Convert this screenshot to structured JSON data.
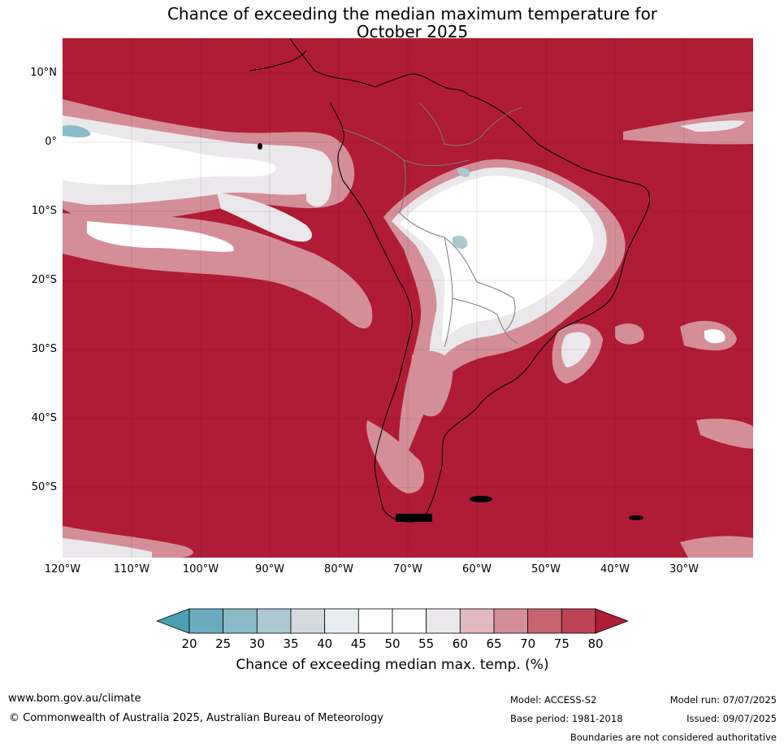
{
  "title_line1": "Chance of exceeding the median maximum temperature for",
  "title_line2": "October 2025",
  "lat_labels": [
    "10°N",
    "0°",
    "10°S",
    "20°S",
    "30°S",
    "40°S",
    "50°S"
  ],
  "lon_labels": [
    "120°W",
    "110°W",
    "100°W",
    "90°W",
    "80°W",
    "70°W",
    "60°W",
    "50°W",
    "40°W",
    "30°W"
  ],
  "colorbar": {
    "ticks": [
      "20",
      "25",
      "30",
      "35",
      "40",
      "45",
      "50",
      "55",
      "60",
      "65",
      "70",
      "75",
      "80"
    ],
    "colors": [
      "#4ba0b3",
      "#6aacbd",
      "#8bbac7",
      "#abc9cf",
      "#d3dadd",
      "#e8eef0",
      "#ffffff",
      "#ffffff",
      "#eae8ea",
      "#e2b9c0",
      "#d48e98",
      "#c8646f",
      "#be4453",
      "#b01b36"
    ],
    "label": "Chance of exceeding median max. temp. (%)"
  },
  "footer": {
    "url": "www.bom.gov.au/climate",
    "copyright": "© Commonwealth of Australia 2025, Australian Bureau of Meteorology",
    "model": "Model: ACCESS-S2",
    "base_period": "Base period: 1981-2018",
    "model_run": "Model run: 07/07/2025",
    "issued": "Issued: 09/07/2025",
    "disclaimer": "Boundaries are not considered authoritative"
  }
}
